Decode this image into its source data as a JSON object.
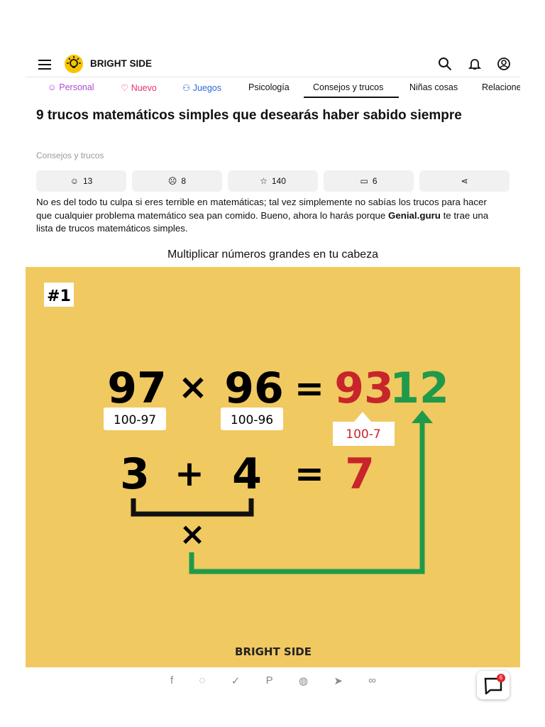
{
  "header": {
    "brand": "BRIGHT SIDE",
    "nav": [
      "Personal",
      "Nuevo",
      "Juegos",
      "Psicología",
      "Consejos y trucos",
      "Niñas cosas",
      "Relaciones"
    ]
  },
  "article": {
    "title": "9 trucos matemáticos simples que desearás haber sabido siempre",
    "category": "Consejos y trucos",
    "reactions": [
      13,
      8,
      140,
      6
    ],
    "intro": {
      "before": "No es del todo tu culpa si eres terrible en matemáticas; tal vez simplemente no sabías los trucos para hacer que cualquier problema matemático sea pan comido. Bueno, ahora lo harás porque ",
      "bold": "Genial.guru",
      "after": " te trae una lista de trucos matemáticos simples."
    },
    "image_caption": "Multiplicar números grandes en tu cabeza",
    "image": {
      "badge": "#1",
      "top": [
        "97",
        "×",
        "96",
        "=",
        "93",
        "12"
      ],
      "hints": [
        "100-97",
        "100-96",
        "100-7"
      ],
      "bottom": [
        "3",
        "+",
        "4",
        "=",
        "7"
      ],
      "times": "×",
      "brand": "BRIGHT SIDE"
    }
  },
  "chat_badge": 6
}
